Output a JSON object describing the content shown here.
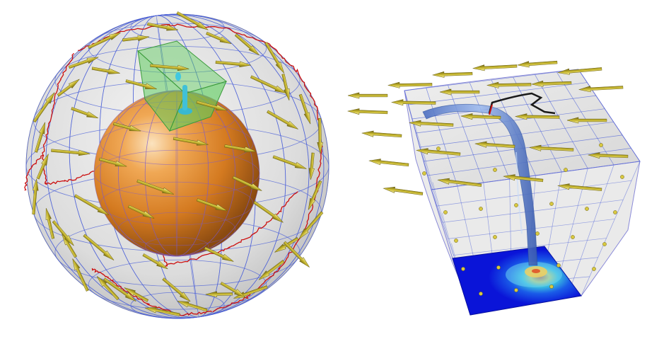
{
  "panels": [
    {
      "name": "spherical-shell-view",
      "contents": [
        "translucent-outer-shell",
        "orange-inner-sphere",
        "green-subvolume-box",
        "red-trajectory-curves",
        "yellow-vector-arrows",
        "blue-grid-lines"
      ]
    },
    {
      "name": "regional-box-view",
      "contents": [
        "translucent-curved-box",
        "blue-flux-tube",
        "black-field-line",
        "blue-contour-base",
        "yellow-vector-arrows",
        "blue-grid-lines"
      ]
    }
  ],
  "colors": {
    "background": "#ffffff",
    "shell_fill": "#d8d8d8",
    "grid": "#4a5fd8",
    "inner_sphere": "#e08a2a",
    "inner_sphere_highlight": "#f8d9a8",
    "subvolume_box": "#5ccc5c",
    "trajectory": "#cc1010",
    "arrow": "#c8b830",
    "arrow_dark": "#6c6212",
    "flux_tube": "#6a8ed6",
    "field_line": "#1a1a1a",
    "contour_base": "#0a14d8",
    "contour_inner": "#3ac0e0",
    "contour_core": "#e06030"
  }
}
